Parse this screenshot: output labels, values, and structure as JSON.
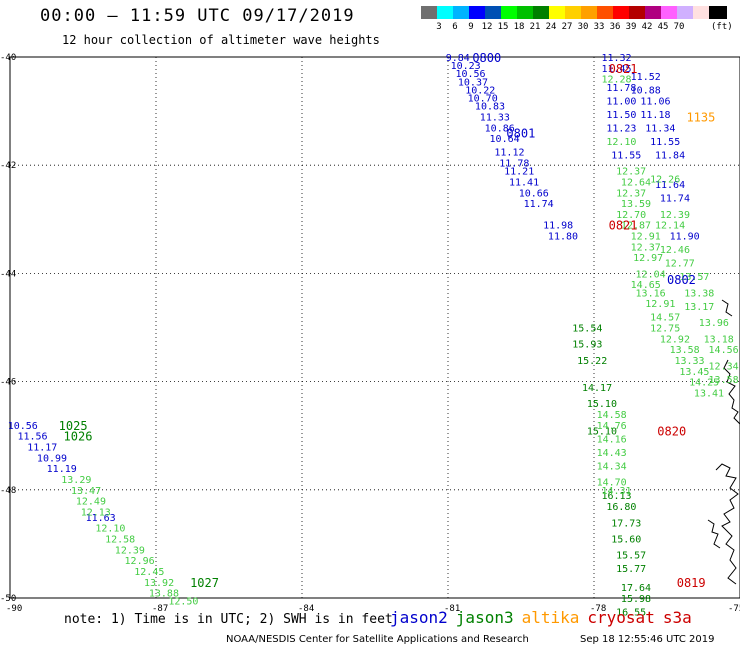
{
  "title": "00:00 – 11:59 UTC 09/17/2019",
  "subtitle": "12 hour collection of altimeter wave heights",
  "colorbar": {
    "swatches": [
      "#707070",
      "#00ffff",
      "#00b4ff",
      "#0000ff",
      "#0050b4",
      "#00ff00",
      "#00c000",
      "#008000",
      "#ffff00",
      "#ffd000",
      "#ffa000",
      "#ff5000",
      "#ff0000",
      "#b40000",
      "#b00080",
      "#ff60ff",
      "#d0b0ff",
      "#ffe0e0",
      "#000000"
    ],
    "labels": [
      "3",
      "6",
      "9",
      "12",
      "15",
      "18",
      "21",
      "24",
      "27",
      "30",
      "33",
      "36",
      "39",
      "42",
      "45",
      "70"
    ],
    "unit": "(ft)"
  },
  "axes": {
    "x_ticks": [
      "-90",
      "-87",
      "-84",
      "-81",
      "-78",
      "-75"
    ],
    "y_ticks": [
      "-40",
      "-42",
      "-44",
      "-46",
      "-48",
      "-50"
    ],
    "lon_range": [
      -90,
      -75
    ],
    "lat_range": [
      -50,
      -40
    ]
  },
  "satellites": [
    {
      "name": "jason2",
      "color": "#0000cc"
    },
    {
      "name": "jason3",
      "color": "#008000"
    },
    {
      "name": "altika",
      "color": "#ff9900"
    },
    {
      "name": "cryosat",
      "color": "#cc0000"
    },
    {
      "name": "s3a",
      "color": "#cc0000"
    }
  ],
  "note": "note: 1) Time is in UTC; 2) SWH is in feet",
  "footer_left": "NOAA/NESDIS Center for Satellite Applications and Research",
  "footer_right": "Sep 18 12:55:46 UTC 2019",
  "chart_data": {
    "type": "scatter",
    "title": "00:00 – 11:59 UTC 09/17/2019",
    "xlabel": "",
    "ylabel": "",
    "xlim": [
      -90,
      -75
    ],
    "ylim": [
      -50,
      -40
    ],
    "grid": true,
    "time_labels": [
      {
        "text": "0800",
        "lon": -80.5,
        "lat": -40.0,
        "color": "#0000cc"
      },
      {
        "text": "0801",
        "lon": -79.8,
        "lat": -41.4,
        "color": "#0000cc"
      },
      {
        "text": "0802",
        "lon": -76.5,
        "lat": -44.1,
        "color": "#0000cc"
      },
      {
        "text": "0821",
        "lon": -77.7,
        "lat": -40.2,
        "color": "#cc0000"
      },
      {
        "text": "0821",
        "lon": -77.7,
        "lat": -43.1,
        "color": "#cc0000"
      },
      {
        "text": "0820",
        "lon": -76.7,
        "lat": -46.9,
        "color": "#cc0000"
      },
      {
        "text": "0819",
        "lon": -76.3,
        "lat": -49.7,
        "color": "#cc0000"
      },
      {
        "text": "1135",
        "lon": -76.1,
        "lat": -41.1,
        "color": "#ff9900"
      },
      {
        "text": "1025",
        "lon": -89.0,
        "lat": -46.8,
        "color": "#008000"
      },
      {
        "text": "1026",
        "lon": -88.9,
        "lat": -47.0,
        "color": "#008000"
      },
      {
        "text": "1027",
        "lon": -86.3,
        "lat": -49.7,
        "color": "#008000"
      }
    ],
    "series": [
      {
        "name": "jason2",
        "color": "#0000cc",
        "points": [
          [
            -80.8,
            -40.0,
            "9.84"
          ],
          [
            -80.7,
            -40.15,
            "10.23"
          ],
          [
            -80.6,
            -40.3,
            "10.56"
          ],
          [
            -80.55,
            -40.45,
            "10.37"
          ],
          [
            -80.4,
            -40.6,
            "10.22"
          ],
          [
            -80.35,
            -40.75,
            "10.70"
          ],
          [
            -80.2,
            -40.9,
            "10.83"
          ],
          [
            -80.1,
            -41.1,
            "11.33"
          ],
          [
            -80.0,
            -41.3,
            "10.86"
          ],
          [
            -79.9,
            -41.5,
            "10.64"
          ],
          [
            -79.8,
            -41.75,
            "11.12"
          ],
          [
            -79.7,
            -41.95,
            "11.78"
          ],
          [
            -79.6,
            -42.1,
            "11.21"
          ],
          [
            -79.5,
            -42.3,
            "11.41"
          ],
          [
            -79.3,
            -42.5,
            "10.66"
          ],
          [
            -79.2,
            -42.7,
            "11.74"
          ],
          [
            -78.8,
            -43.1,
            "11.98"
          ],
          [
            -78.7,
            -43.3,
            "11.80"
          ],
          [
            -77.6,
            -40.0,
            "11.32"
          ],
          [
            -77.6,
            -40.2,
            "11.45"
          ],
          [
            -77.0,
            -40.35,
            "11.52"
          ],
          [
            -77.0,
            -40.6,
            "10.88"
          ],
          [
            -76.8,
            -40.8,
            "11.06"
          ],
          [
            -76.8,
            -41.05,
            "11.18"
          ],
          [
            -76.7,
            -41.3,
            "11.34"
          ],
          [
            -76.6,
            -41.55,
            "11.55"
          ],
          [
            -76.5,
            -41.8,
            "11.84"
          ],
          [
            -76.5,
            -42.35,
            "11.64"
          ],
          [
            -76.4,
            -42.6,
            "11.74"
          ],
          [
            -76.2,
            -43.3,
            "11.90"
          ],
          [
            -77.5,
            -40.55,
            "11.78"
          ],
          [
            -77.5,
            -40.8,
            "11.00"
          ],
          [
            -77.5,
            -41.05,
            "11.50"
          ],
          [
            -77.5,
            -41.3,
            "11.23"
          ],
          [
            -77.4,
            -41.8,
            "11.55"
          ],
          [
            -89.8,
            -46.8,
            "10.56"
          ],
          [
            -89.6,
            -47.0,
            "11.56"
          ],
          [
            -89.4,
            -47.2,
            "11.17"
          ],
          [
            -89.2,
            -47.4,
            "10.99"
          ],
          [
            -89.0,
            -47.6,
            "11.19"
          ],
          [
            -88.2,
            -48.5,
            "11.63"
          ]
        ]
      },
      {
        "name": "jason3",
        "color": "#008000",
        "points": [
          [
            -78.2,
            -45.0,
            "15.54"
          ],
          [
            -78.2,
            -45.3,
            "15.93"
          ],
          [
            -78.1,
            -45.6,
            "15.22"
          ],
          [
            -78.0,
            -46.1,
            "14.17"
          ],
          [
            -77.9,
            -46.4,
            "15.10"
          ],
          [
            -77.9,
            -46.9,
            "15.10"
          ],
          [
            -77.6,
            -48.1,
            "16.13"
          ],
          [
            -77.5,
            -48.3,
            "16.80"
          ],
          [
            -77.4,
            -48.6,
            "17.73"
          ],
          [
            -77.4,
            -48.9,
            "15.60"
          ],
          [
            -77.3,
            -49.2,
            "15.57"
          ],
          [
            -77.3,
            -49.45,
            "15.77"
          ],
          [
            -77.2,
            -49.8,
            "17.64"
          ],
          [
            -77.2,
            -50.0,
            "15.98"
          ],
          [
            -77.3,
            -50.25,
            "16.55"
          ]
        ]
      },
      {
        "name": "jason3-lower",
        "color": "#44cc44",
        "points": [
          [
            -77.6,
            -40.4,
            "12.28"
          ],
          [
            -77.5,
            -41.55,
            "12.10"
          ],
          [
            -77.3,
            -42.1,
            "12.37"
          ],
          [
            -77.2,
            -42.3,
            "12.64"
          ],
          [
            -77.3,
            -42.5,
            "12.37"
          ],
          [
            -77.2,
            -42.7,
            "13.59"
          ],
          [
            -77.3,
            -42.9,
            "12.70"
          ],
          [
            -77.2,
            -43.1,
            "12.87"
          ],
          [
            -77.0,
            -43.3,
            "12.91"
          ],
          [
            -77.0,
            -43.5,
            "12.37"
          ],
          [
            -76.95,
            -43.7,
            "12.97"
          ],
          [
            -76.9,
            -44.0,
            "12.04"
          ],
          [
            -77.0,
            -44.2,
            "14.65"
          ],
          [
            -76.9,
            -44.35,
            "13.16"
          ],
          [
            -76.7,
            -44.55,
            "12.91"
          ],
          [
            -76.6,
            -44.8,
            "14.57"
          ],
          [
            -76.6,
            -45.0,
            "12.75"
          ],
          [
            -76.4,
            -45.2,
            "12.92"
          ],
          [
            -76.2,
            -45.4,
            "13.58"
          ],
          [
            -76.1,
            -45.6,
            "13.33"
          ],
          [
            -76.0,
            -45.8,
            "13.45"
          ],
          [
            -75.8,
            -46.0,
            "14.25"
          ],
          [
            -75.7,
            -46.2,
            "13.41"
          ],
          [
            -77.7,
            -46.6,
            "14.58"
          ],
          [
            -77.7,
            -46.8,
            "14.76"
          ],
          [
            -77.7,
            -47.05,
            "14.16"
          ],
          [
            -77.7,
            -47.3,
            "14.43"
          ],
          [
            -77.7,
            -47.55,
            "14.34"
          ],
          [
            -77.7,
            -47.85,
            "14.70"
          ],
          [
            -77.6,
            -48.0,
            "14.31"
          ],
          [
            -76.6,
            -42.25,
            "12.26"
          ],
          [
            -76.4,
            -42.9,
            "12.39"
          ],
          [
            -76.5,
            -43.1,
            "12.14"
          ],
          [
            -76.4,
            -43.55,
            "12.46"
          ],
          [
            -76.3,
            -43.8,
            "12.77"
          ],
          [
            -76.0,
            -44.05,
            "13.57"
          ],
          [
            -75.9,
            -44.35,
            "13.38"
          ],
          [
            -75.9,
            -44.6,
            "13.17"
          ],
          [
            -75.6,
            -44.9,
            "13.96"
          ],
          [
            -75.5,
            -45.2,
            "13.18"
          ],
          [
            -75.4,
            -45.4,
            "14.56"
          ],
          [
            -75.4,
            -45.7,
            "12.34"
          ],
          [
            -75.4,
            -45.95,
            "13.58"
          ],
          [
            -88.7,
            -47.8,
            "13.29"
          ],
          [
            -88.5,
            -48.0,
            "13.47"
          ],
          [
            -88.4,
            -48.2,
            "12.49"
          ],
          [
            -88.3,
            -48.4,
            "12.13"
          ],
          [
            -88.0,
            -48.7,
            "12.10"
          ],
          [
            -87.8,
            -48.9,
            "12.58"
          ],
          [
            -87.6,
            -49.1,
            "12.39"
          ],
          [
            -87.4,
            -49.3,
            "12.96"
          ],
          [
            -87.2,
            -49.5,
            "12.45"
          ],
          [
            -87.0,
            -49.7,
            "13.92"
          ],
          [
            -86.9,
            -49.9,
            "13.88"
          ],
          [
            -86.5,
            -50.05,
            "12.50"
          ]
        ]
      }
    ]
  }
}
